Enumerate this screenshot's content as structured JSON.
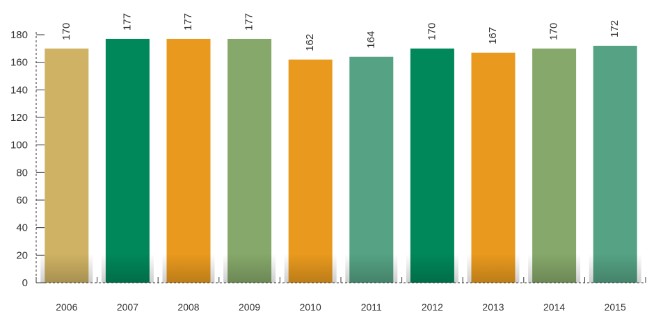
{
  "chart_data": {
    "type": "bar",
    "categories": [
      "2006",
      "2007",
      "2008",
      "2009",
      "2010",
      "2011",
      "2012",
      "2013",
      "2014",
      "2015"
    ],
    "values": [
      170,
      177,
      177,
      177,
      162,
      164,
      170,
      167,
      170,
      172
    ],
    "value_labels": [
      "170",
      "177",
      "177",
      "177",
      "162",
      "164",
      "170",
      "167",
      "170",
      "172"
    ],
    "colors": [
      "#cfb263",
      "#00875a",
      "#e99a1e",
      "#86a86a",
      "#e99a1e",
      "#55a284",
      "#00875a",
      "#e99a1e",
      "#86a86a",
      "#55a284"
    ],
    "ylim": [
      0,
      180
    ],
    "yticks": [
      0,
      20,
      40,
      60,
      80,
      100,
      120,
      140,
      160,
      180
    ],
    "ytick_labels": [
      "0",
      "20",
      "40",
      "60",
      "80",
      "100",
      "120",
      "140",
      "160",
      "180"
    ],
    "grid": false,
    "legend": "none",
    "title": "",
    "xlabel": "",
    "ylabel": ""
  }
}
